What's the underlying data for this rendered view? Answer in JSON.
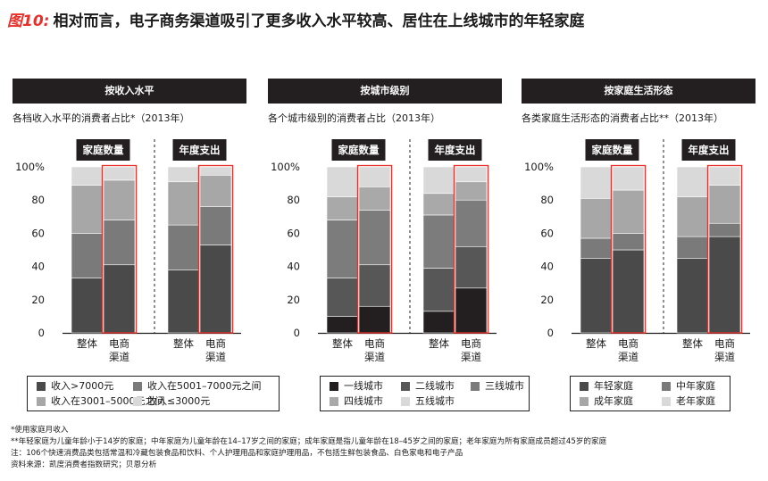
{
  "figure": {
    "label": "图10:",
    "title": "相对而言，电子商务渠道吸引了更多收入水平较高、居住在上线城市的年轻家庭"
  },
  "colors": {
    "accent": "#e8302a",
    "banner_bg": "#231f20",
    "panel_box": "#231f20"
  },
  "chart_data": [
    {
      "type": "bar",
      "stacked": true,
      "banner": "按收入水平",
      "subtitle": "各档收入水平的消费者占比*（2013年）",
      "groups": [
        {
          "label": "家庭数量",
          "categories": [
            "整体",
            "电商渠道"
          ],
          "highlight": "电商渠道"
        },
        {
          "label": "年度支出",
          "categories": [
            "整体",
            "电商渠道"
          ],
          "highlight": "电商渠道"
        }
      ],
      "yticks": [
        "0",
        "20",
        "40",
        "60",
        "80",
        "100%"
      ],
      "ylim": [
        0,
        100
      ],
      "legend": [
        {
          "name": "收入>7000元",
          "color": "#4a4a4a"
        },
        {
          "name": "收入在5001–7000元之间",
          "color": "#7a7a7a"
        },
        {
          "name": "收入在3001–5000元之间",
          "color": "#a7a7a7"
        },
        {
          "name": "收入≤3000元",
          "color": "#d9d9d9"
        }
      ],
      "bars": [
        {
          "group": 0,
          "category": "整体",
          "values": [
            33,
            27,
            29,
            11
          ]
        },
        {
          "group": 0,
          "category": "电商渠道",
          "values": [
            41,
            27,
            24,
            8
          ]
        },
        {
          "group": 1,
          "category": "整体",
          "values": [
            38,
            27,
            26,
            9
          ]
        },
        {
          "group": 1,
          "category": "电商渠道",
          "values": [
            53,
            23,
            19,
            5
          ]
        }
      ]
    },
    {
      "type": "bar",
      "stacked": true,
      "banner": "按城市级别",
      "subtitle": "各个城市级别的消费者占比（2013年）",
      "groups": [
        {
          "label": "家庭数量",
          "categories": [
            "整体",
            "电商渠道"
          ],
          "highlight": "电商渠道"
        },
        {
          "label": "年度支出",
          "categories": [
            "整体",
            "电商渠道"
          ],
          "highlight": "电商渠道"
        }
      ],
      "yticks": [
        "0",
        "20",
        "40",
        "60",
        "80",
        "100%"
      ],
      "ylim": [
        0,
        100
      ],
      "legend": [
        {
          "name": "一线城市",
          "color": "#231f20"
        },
        {
          "name": "二线城市",
          "color": "#575757"
        },
        {
          "name": "三线城市",
          "color": "#7c7c7c"
        },
        {
          "name": "四线城市",
          "color": "#a9a9a9"
        },
        {
          "name": "五线城市",
          "color": "#d9d9d9"
        }
      ],
      "bars": [
        {
          "group": 0,
          "category": "整体",
          "values": [
            10,
            23,
            35,
            14,
            18
          ]
        },
        {
          "group": 0,
          "category": "电商渠道",
          "values": [
            16,
            25,
            33,
            14,
            12
          ]
        },
        {
          "group": 1,
          "category": "整体",
          "values": [
            13,
            26,
            32,
            13,
            16
          ]
        },
        {
          "group": 1,
          "category": "电商渠道",
          "values": [
            27,
            25,
            28,
            11,
            9
          ]
        }
      ]
    },
    {
      "type": "bar",
      "stacked": true,
      "banner": "按家庭生活形态",
      "subtitle": "各类家庭生活形态的消费者占比**（2013年）",
      "groups": [
        {
          "label": "家庭数量",
          "categories": [
            "整体",
            "电商渠道"
          ],
          "highlight": "电商渠道"
        },
        {
          "label": "年度支出",
          "categories": [
            "整体",
            "电商渠道"
          ],
          "highlight": "电商渠道"
        }
      ],
      "yticks": [
        "0",
        "20",
        "40",
        "60",
        "80",
        "100%"
      ],
      "ylim": [
        0,
        100
      ],
      "legend": [
        {
          "name": "年轻家庭",
          "color": "#4a4a4a"
        },
        {
          "name": "中年家庭",
          "color": "#7a7a7a"
        },
        {
          "name": "成年家庭",
          "color": "#a7a7a7"
        },
        {
          "name": "老年家庭",
          "color": "#d9d9d9"
        }
      ],
      "bars": [
        {
          "group": 0,
          "category": "整体",
          "values": [
            45,
            12,
            24,
            19
          ]
        },
        {
          "group": 0,
          "category": "电商渠道",
          "values": [
            50,
            10,
            26,
            14
          ]
        },
        {
          "group": 1,
          "category": "整体",
          "values": [
            45,
            13,
            24,
            18
          ]
        },
        {
          "group": 1,
          "category": "电商渠道",
          "values": [
            58,
            8,
            23,
            11
          ]
        }
      ]
    }
  ],
  "notes": [
    "*使用家庭月收入",
    "**年轻家庭为儿童年龄小于14岁的家庭；中年家庭为儿童年龄在14–17岁之间的家庭；成年家庭是指儿童年龄在18–45岁之间的家庭；老年家庭为所有家庭成员超过45岁的家庭",
    "注：106个快速消费品类包括常温和冷藏包装食品和饮料、个人护理用品和家庭护理用品，不包括生鲜包装食品、白色家电和电子产品",
    "资料来源：凯度消费者指数研究；贝恩分析"
  ]
}
